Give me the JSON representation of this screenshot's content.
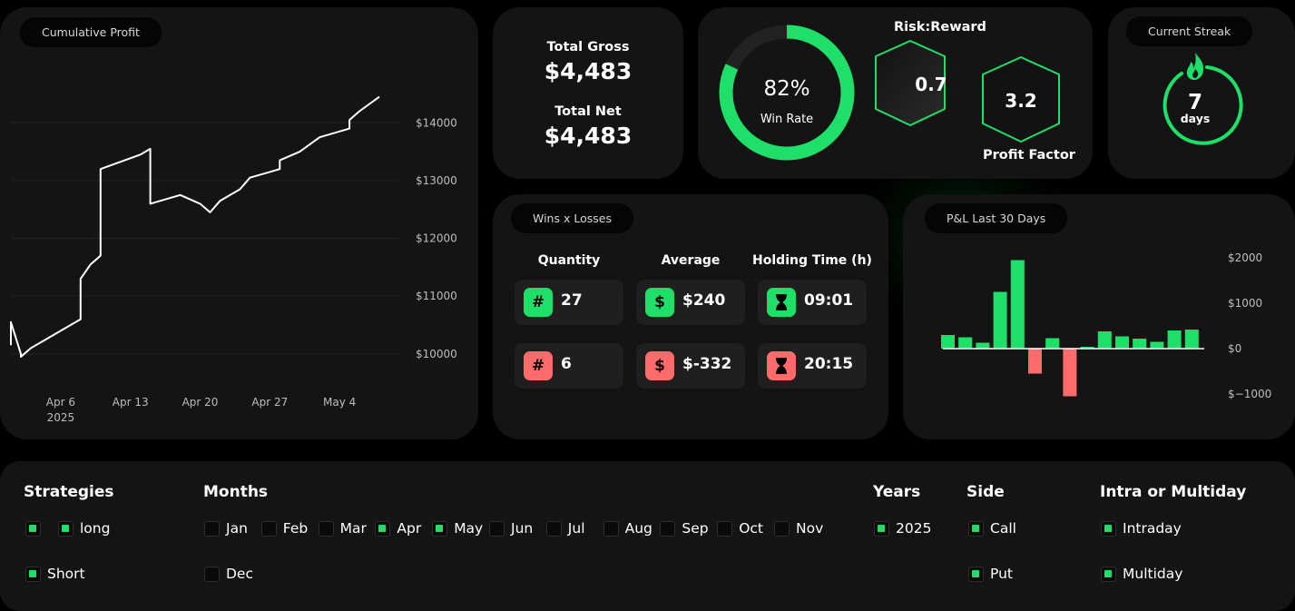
{
  "cumulative_profit": {
    "title": "Cumulative Profit",
    "chart_data": {
      "type": "line",
      "series": [
        {
          "points": [
            [
              "2025-04-01",
              10150
            ],
            [
              "2025-04-01",
              10550
            ],
            [
              "2025-04-02",
              10000
            ],
            [
              "2025-04-02",
              9950
            ],
            [
              "2025-04-03",
              10100
            ],
            [
              "2025-04-05",
              10300
            ],
            [
              "2025-04-07",
              10500
            ],
            [
              "2025-04-08",
              10600
            ],
            [
              "2025-04-08",
              11300
            ],
            [
              "2025-04-09",
              11550
            ],
            [
              "2025-04-10",
              11700
            ],
            [
              "2025-04-10",
              13200
            ],
            [
              "2025-04-14",
              13450
            ],
            [
              "2025-04-15",
              13550
            ],
            [
              "2025-04-15",
              12600
            ],
            [
              "2025-04-18",
              12750
            ],
            [
              "2025-04-20",
              12600
            ],
            [
              "2025-04-21",
              12450
            ],
            [
              "2025-04-22",
              12650
            ],
            [
              "2025-04-24",
              12850
            ],
            [
              "2025-04-25",
              13050
            ],
            [
              "2025-04-27",
              13150
            ],
            [
              "2025-04-28",
              13200
            ],
            [
              "2025-04-28",
              13350
            ],
            [
              "2025-04-30",
              13500
            ],
            [
              "2025-05-02",
              13750
            ],
            [
              "2025-05-05",
              13900
            ],
            [
              "2025-05-05",
              14050
            ],
            [
              "2025-05-06",
              14200
            ],
            [
              "2025-05-08",
              14450
            ]
          ]
        }
      ],
      "x_ticks": [
        {
          "date": "2025-04-06",
          "label": "Apr 6",
          "sublabel": "2025"
        },
        {
          "date": "2025-04-13",
          "label": "Apr 13",
          "sublabel": ""
        },
        {
          "date": "2025-04-20",
          "label": "Apr 20",
          "sublabel": ""
        },
        {
          "date": "2025-04-27",
          "label": "Apr 27",
          "sublabel": ""
        },
        {
          "date": "2025-05-04",
          "label": "May 4",
          "sublabel": ""
        }
      ],
      "xlim": [
        "2025-04-01",
        "2025-05-10"
      ],
      "y_ticks": [
        {
          "value": 10000,
          "label": "$10000"
        },
        {
          "value": 11000,
          "label": "$11000"
        },
        {
          "value": 12000,
          "label": "$12000"
        },
        {
          "value": 13000,
          "label": "$13000"
        },
        {
          "value": 14000,
          "label": "$14000"
        }
      ],
      "ylim": [
        9400,
        14900
      ],
      "grid": true
    }
  },
  "gross": {
    "total_gross_label": "Total Gross",
    "total_gross_value": "$4,483",
    "total_net_label": "Total Net",
    "total_net_value": "$4,483"
  },
  "winrate": {
    "value_text": "82%",
    "label": "Win Rate",
    "fraction": 0.82
  },
  "risk_reward": {
    "title": "Risk:Reward",
    "value": "0.7"
  },
  "profit_factor": {
    "title": "Profit Factor",
    "value": "3.2"
  },
  "streak": {
    "title": "Current Streak",
    "value": "7",
    "unit": "days",
    "icon": "flame-icon"
  },
  "wins_losses": {
    "title": "Wins x Losses",
    "headers": {
      "quantity": "Quantity",
      "average": "Average",
      "holding": "Holding Time (h)"
    },
    "wins": {
      "quantity": "27",
      "average": "$240",
      "holding": "09:01"
    },
    "losses": {
      "quantity": "6",
      "average": "$-332",
      "holding": "20:15"
    },
    "icons": {
      "quantity": "#",
      "average": "$",
      "holding": "hourglass-icon"
    }
  },
  "pnl": {
    "title": "P&L Last 30 Days",
    "chart_data": {
      "type": "bar",
      "values": [
        300,
        250,
        130,
        1250,
        1950,
        -550,
        230,
        -1050,
        40,
        380,
        270,
        220,
        150,
        400,
        420
      ],
      "y_ticks": [
        {
          "value": 2000,
          "label": "$2000"
        },
        {
          "value": 1000,
          "label": "$1000"
        },
        {
          "value": 0,
          "label": "$0"
        },
        {
          "value": -1000,
          "label": "$−1000"
        }
      ],
      "ylim": [
        -1200,
        2200
      ],
      "colors": {
        "positive": "#1ee069",
        "negative": "#ff6b6b"
      }
    }
  },
  "filters": {
    "strategies": {
      "title": "Strategies",
      "items": [
        {
          "label": "",
          "checked": true
        },
        {
          "label": "long",
          "checked": true
        },
        {
          "label": "Short",
          "checked": true
        }
      ]
    },
    "months": {
      "title": "Months",
      "items": [
        {
          "label": "Jan",
          "checked": false
        },
        {
          "label": "Feb",
          "checked": false
        },
        {
          "label": "Mar",
          "checked": false
        },
        {
          "label": "Apr",
          "checked": true
        },
        {
          "label": "May",
          "checked": true
        },
        {
          "label": "Jun",
          "checked": false
        },
        {
          "label": "Jul",
          "checked": false
        },
        {
          "label": "Aug",
          "checked": false
        },
        {
          "label": "Sep",
          "checked": false
        },
        {
          "label": "Oct",
          "checked": false
        },
        {
          "label": "Nov",
          "checked": false
        },
        {
          "label": "Dec",
          "checked": false
        }
      ]
    },
    "years": {
      "title": "Years",
      "items": [
        {
          "label": "2025",
          "checked": true
        }
      ]
    },
    "side": {
      "title": "Side",
      "items": [
        {
          "label": "Call",
          "checked": true
        },
        {
          "label": "Put",
          "checked": true
        }
      ]
    },
    "intra": {
      "title": "Intra or Multiday",
      "items": [
        {
          "label": "Intraday",
          "checked": true
        },
        {
          "label": "Multiday",
          "checked": true
        }
      ]
    }
  },
  "colors": {
    "accent": "#1ee069",
    "negative": "#ff6b6b",
    "card": "#141414",
    "background": "#000000"
  }
}
